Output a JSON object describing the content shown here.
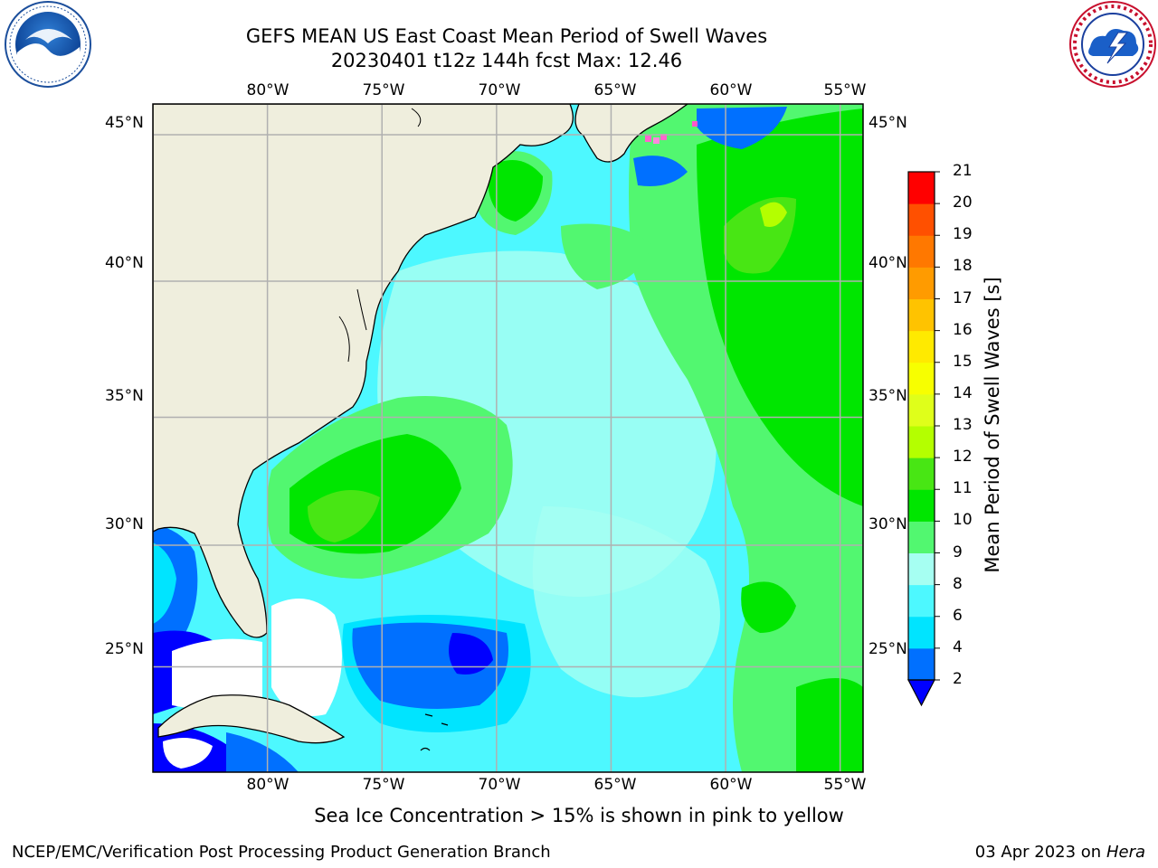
{
  "header": {
    "title_line1": "GEFS MEAN US East Coast Mean Period of Swell Waves",
    "title_line2": "20230401 t12z 144h fcst   Max: 12.46"
  },
  "logos": {
    "left": "noara-logo",
    "right": "nws-logo"
  },
  "map": {
    "lon_labels": [
      "80°W",
      "75°W",
      "70°W",
      "65°W",
      "60°W",
      "55°W"
    ],
    "lat_labels": [
      "45°N",
      "40°N",
      "35°N",
      "30°N",
      "25°N"
    ],
    "lon_range": [
      -85,
      -54
    ],
    "lat_range": [
      20.5,
      46
    ],
    "colors": {
      "land": "#efeedd",
      "gridline": "#b0b0b0",
      "coast": "#000000"
    }
  },
  "colorbar": {
    "label": "Mean Period of Swell Waves [s]",
    "ticks": [
      "2",
      "4",
      "6",
      "8",
      "9",
      "10",
      "11",
      "12",
      "13",
      "14",
      "15",
      "16",
      "17",
      "18",
      "19",
      "20",
      "21"
    ],
    "levels": [
      {
        "from": 2,
        "to": 4,
        "color": "#0070ff"
      },
      {
        "from": 4,
        "to": 6,
        "color": "#00e4ff"
      },
      {
        "from": 6,
        "to": 8,
        "color": "#4df8ff"
      },
      {
        "from": 8,
        "to": 9,
        "color": "#a6fff2"
      },
      {
        "from": 9,
        "to": 10,
        "color": "#52f770"
      },
      {
        "from": 10,
        "to": 11,
        "color": "#00e600"
      },
      {
        "from": 11,
        "to": 12,
        "color": "#48e614"
      },
      {
        "from": 12,
        "to": 13,
        "color": "#b4ff00"
      },
      {
        "from": 13,
        "to": 14,
        "color": "#dfff1a"
      },
      {
        "from": 14,
        "to": 15,
        "color": "#f7ff00"
      },
      {
        "from": 15,
        "to": 16,
        "color": "#ffea00"
      },
      {
        "from": 16,
        "to": 17,
        "color": "#ffc300"
      },
      {
        "from": 17,
        "to": 18,
        "color": "#ff9b00"
      },
      {
        "from": 18,
        "to": 19,
        "color": "#ff7800"
      },
      {
        "from": 19,
        "to": 20,
        "color": "#ff5000"
      },
      {
        "from": 20,
        "to": 21,
        "color": "#ff0000"
      }
    ],
    "under_color": "#0000ff"
  },
  "caption": "Sea Ice Concentration > 15% is shown in pink to yellow",
  "footer": {
    "left": "NCEP/EMC/Verification Post Processing Product Generation Branch",
    "date": "03 Apr 2023 on",
    "host": "Hera"
  }
}
